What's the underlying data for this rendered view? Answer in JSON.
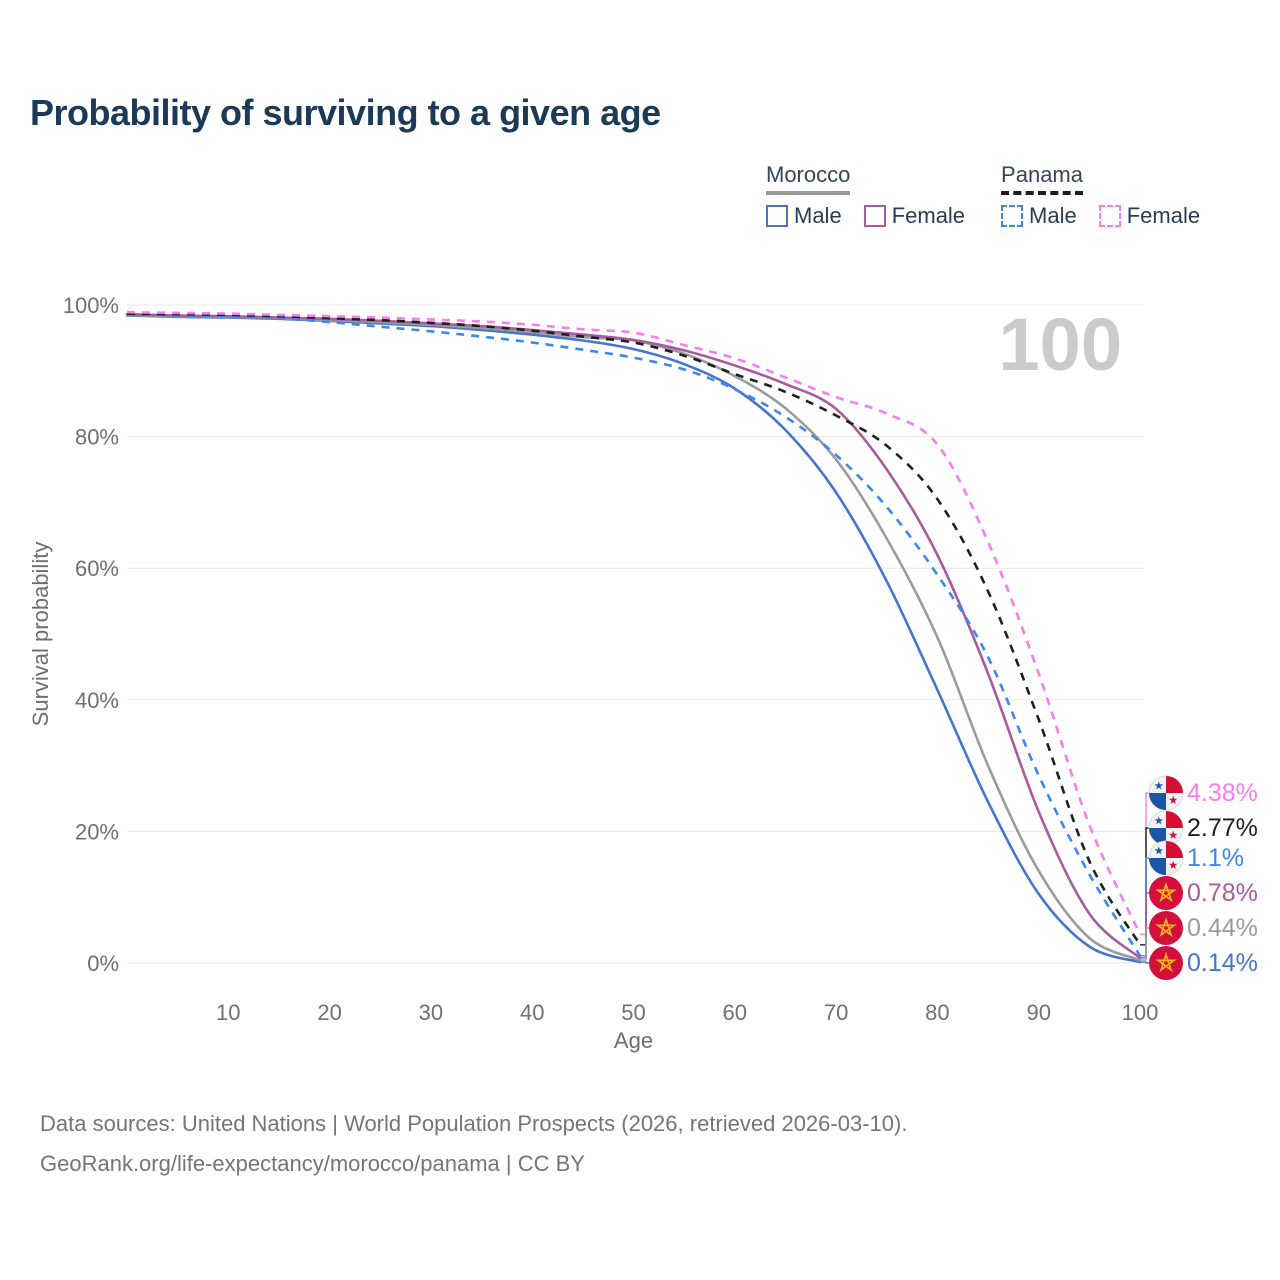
{
  "title": "Probability of surviving to a given age",
  "watermark": "100",
  "legend": {
    "groups": [
      {
        "label": "Morocco",
        "line_style": "solid",
        "underline_color": "#9a9a9a",
        "items": [
          {
            "label": "Male",
            "color": "#4775cb",
            "dashed": false
          },
          {
            "label": "Female",
            "color": "#a85ca0",
            "dashed": false
          }
        ]
      },
      {
        "label": "Panama",
        "line_style": "dashed",
        "underline_color": "#1d1d1d",
        "items": [
          {
            "label": "Male",
            "color": "#3d87f0",
            "dashed": true
          },
          {
            "label": "Female",
            "color": "#f97cf0",
            "dashed": true
          }
        ]
      }
    ]
  },
  "chart_data": {
    "type": "line",
    "xlabel": "Age",
    "ylabel": "Survival probability",
    "xlim": [
      0,
      100
    ],
    "ylim": [
      0,
      100
    ],
    "x_ticks": [
      10,
      20,
      30,
      40,
      50,
      60,
      70,
      80,
      90,
      100
    ],
    "y_ticks": [
      0,
      20,
      40,
      60,
      80,
      100
    ],
    "y_tick_suffix": "%",
    "grid": true,
    "legend_position": "top-right",
    "x": [
      0,
      5,
      10,
      15,
      20,
      25,
      30,
      35,
      40,
      45,
      50,
      55,
      60,
      65,
      70,
      75,
      80,
      85,
      90,
      95,
      100
    ],
    "series": [
      {
        "name": "Morocco Male",
        "country": "Morocco",
        "sex": "Male",
        "color": "#4775cb",
        "dashed": false,
        "flag": "morocco",
        "end_label": "0.14%",
        "values": [
          98.4,
          98.2,
          98.1,
          97.9,
          97.6,
          97.2,
          96.8,
          96.2,
          95.5,
          94.6,
          93.3,
          91.0,
          87.3,
          81.0,
          71.5,
          58.0,
          41.5,
          24.5,
          10.5,
          2.5,
          0.14
        ]
      },
      {
        "name": "Morocco Both sexes",
        "country": "Morocco",
        "sex": "Both",
        "color": "#9b9b9b",
        "dashed": false,
        "flag": "morocco",
        "end_label": "0.44%",
        "values": [
          98.5,
          98.3,
          98.2,
          98.0,
          97.7,
          97.4,
          97.0,
          96.5,
          95.9,
          95.1,
          94.6,
          92.6,
          89.2,
          84.3,
          76.5,
          64.5,
          49.5,
          30.0,
          14.0,
          3.8,
          0.44
        ]
      },
      {
        "name": "Morocco Female",
        "country": "Morocco",
        "sex": "Female",
        "color": "#a85ca0",
        "dashed": false,
        "flag": "morocco",
        "end_label": "0.78%",
        "values": [
          98.6,
          98.4,
          98.3,
          98.1,
          97.9,
          97.6,
          97.2,
          96.8,
          96.2,
          95.5,
          94.7,
          93.1,
          90.8,
          88.0,
          84.2,
          75.0,
          62.0,
          44.0,
          23.0,
          7.5,
          0.78
        ]
      },
      {
        "name": "Panama Male",
        "country": "Panama",
        "sex": "Male",
        "color": "#3d87f0",
        "dashed": true,
        "flag": "panama",
        "end_label": "1.1%",
        "values": [
          98.6,
          98.4,
          98.3,
          98.0,
          97.4,
          96.7,
          96.0,
          95.2,
          94.3,
          93.2,
          92.0,
          90.2,
          87.2,
          83.0,
          77.2,
          69.3,
          59.0,
          46.5,
          28.5,
          13.5,
          1.1
        ]
      },
      {
        "name": "Panama Both sexes",
        "country": "Panama",
        "sex": "Both",
        "color": "#1f1f1f",
        "dashed": true,
        "flag": "panama",
        "end_label": "2.77%",
        "values": [
          98.7,
          98.6,
          98.5,
          98.3,
          98.0,
          97.7,
          97.3,
          96.8,
          96.1,
          95.2,
          94.3,
          92.3,
          89.5,
          86.8,
          83.2,
          78.6,
          70.5,
          56.5,
          37.0,
          15.5,
          2.77
        ]
      },
      {
        "name": "Panama Female",
        "country": "Panama",
        "sex": "Female",
        "color": "#f97cf0",
        "dashed": true,
        "flag": "panama",
        "end_label": "4.38%",
        "values": [
          98.9,
          98.8,
          98.7,
          98.5,
          98.3,
          98.1,
          97.8,
          97.5,
          97.0,
          96.3,
          95.8,
          93.9,
          91.9,
          89.0,
          86.0,
          83.5,
          78.8,
          64.0,
          44.0,
          21.0,
          4.38
        ]
      }
    ]
  },
  "flag_colors": {
    "panama_red": "#d21034",
    "panama_blue": "#1a56a8",
    "morocco_red": "#d50f3c",
    "morocco_star": "#f1b31c"
  },
  "footer": {
    "line1": "Data sources: United Nations | World Population Prospects (2026, retrieved 2026-03-10).",
    "line2": "GeoRank.org/life-expectancy/morocco/panama | CC BY"
  }
}
